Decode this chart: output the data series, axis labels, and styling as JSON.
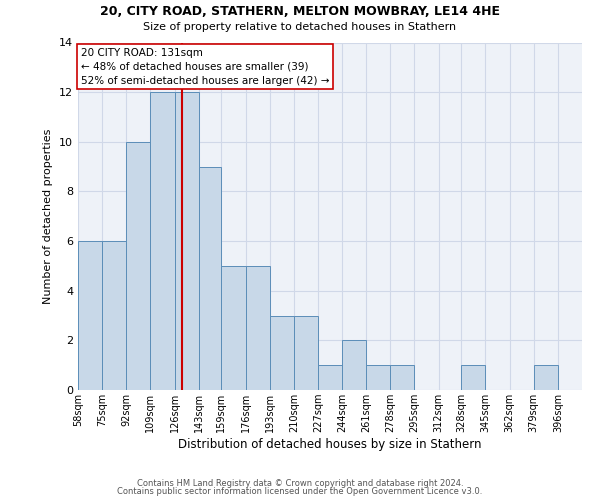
{
  "title_line1": "20, CITY ROAD, STATHERN, MELTON MOWBRAY, LE14 4HE",
  "title_line2": "Size of property relative to detached houses in Stathern",
  "xlabel": "Distribution of detached houses by size in Stathern",
  "ylabel": "Number of detached properties",
  "bin_labels": [
    "58sqm",
    "75sqm",
    "92sqm",
    "109sqm",
    "126sqm",
    "143sqm",
    "159sqm",
    "176sqm",
    "193sqm",
    "210sqm",
    "227sqm",
    "244sqm",
    "261sqm",
    "278sqm",
    "295sqm",
    "312sqm",
    "328sqm",
    "345sqm",
    "362sqm",
    "379sqm",
    "396sqm"
  ],
  "bar_values": [
    6,
    6,
    10,
    12,
    12,
    9,
    5,
    5,
    3,
    3,
    1,
    2,
    1,
    1,
    0,
    0,
    1,
    0,
    0,
    1,
    0
  ],
  "bin_edges": [
    58,
    75,
    92,
    109,
    126,
    143,
    159,
    176,
    193,
    210,
    227,
    244,
    261,
    278,
    295,
    312,
    328,
    345,
    362,
    379,
    396,
    413
  ],
  "bar_color": "#c8d8e8",
  "bar_edge_color": "#5b8db8",
  "vline_x": 131,
  "vline_color": "#cc0000",
  "annotation_text": "20 CITY ROAD: 131sqm\n← 48% of detached houses are smaller (39)\n52% of semi-detached houses are larger (42) →",
  "annotation_box_color": "#ffffff",
  "annotation_box_edge": "#cc0000",
  "grid_color": "#d0d8e8",
  "background_color": "#eef2f8",
  "ylim": [
    0,
    14
  ],
  "yticks": [
    0,
    2,
    4,
    6,
    8,
    10,
    12,
    14
  ],
  "footer_line1": "Contains HM Land Registry data © Crown copyright and database right 2024.",
  "footer_line2": "Contains public sector information licensed under the Open Government Licence v3.0."
}
